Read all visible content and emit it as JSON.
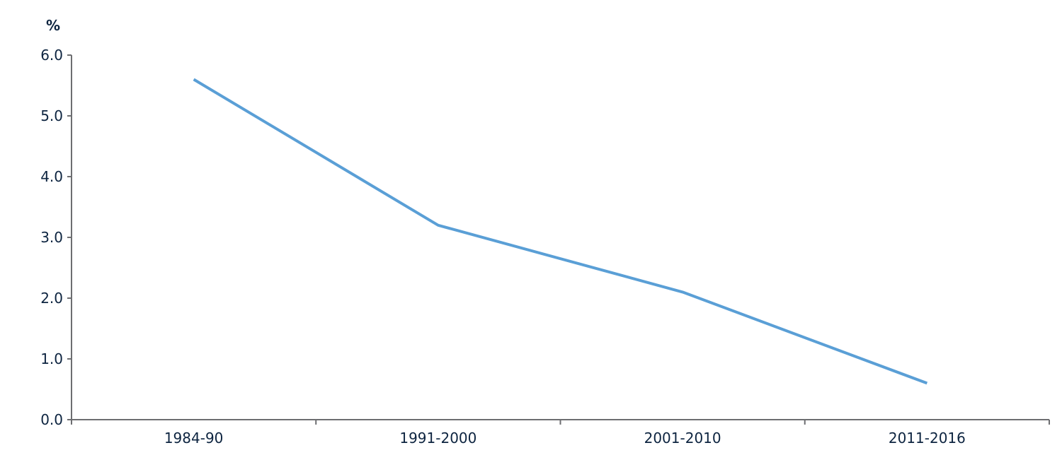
{
  "chart_data": {
    "type": "line",
    "title": "",
    "xlabel": "",
    "ylabel": "%",
    "categories": [
      "1984-90",
      "1991-2000",
      "2001-2010",
      "2011-2016"
    ],
    "series": [
      {
        "values": [
          5.6,
          3.2,
          2.1,
          0.6
        ],
        "color": "#5a9fd6"
      }
    ],
    "ylim": [
      0,
      6
    ],
    "yticks": [
      "0.0",
      "1.0",
      "2.0",
      "3.0",
      "4.0",
      "5.0",
      "6.0"
    ],
    "grid": false,
    "legend": "none",
    "axis_color": "#6d6e71"
  }
}
